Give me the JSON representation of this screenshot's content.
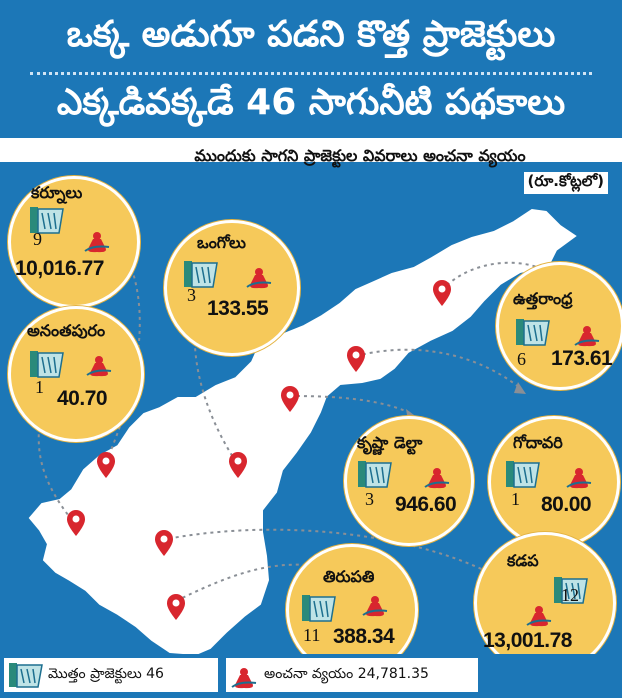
{
  "banner": {
    "line1": "ఒక్క అడుగూ పడని కొత్త ప్రాజెక్టులు",
    "line2": "ఎక్కడివక్కడే 46 సాగునీటి పథకాలు"
  },
  "subtitle": {
    "line1": "ముందుకు సాగని ప్రాజెక్టుల వివరాలు అంచనా వ్యయం",
    "line2": "(రూ.కోట్లలో)"
  },
  "regions": [
    {
      "name": "కర్నూలు",
      "projects": "9",
      "cost": "10,016.77"
    },
    {
      "name": "ఒంగోలు",
      "projects": "3",
      "cost": "133.55"
    },
    {
      "name": "అనంతపురం",
      "projects": "1",
      "cost": "40.70"
    },
    {
      "name": "ఉత్తరాంధ్ర",
      "projects": "6",
      "cost": "173.61"
    },
    {
      "name": "కృష్ణా డెల్టా",
      "projects": "3",
      "cost": "946.60"
    },
    {
      "name": "గోదావరి",
      "projects": "1",
      "cost": "80.00"
    },
    {
      "name": "తిరుపతి",
      "projects": "11",
      "cost": "388.34"
    },
    {
      "name": "కడప",
      "projects": "12",
      "cost": "13,001.78"
    }
  ],
  "footer": {
    "projects_label": "మొత్తం ప్రాజెక్టులు 46",
    "cost_label": "అంచనా వ్యయం 24,781.35"
  },
  "colors": {
    "brand_blue": "#1c77b7",
    "bubble": "#f6c95a",
    "pin": "#d8262e",
    "land": "#ffffff",
    "sea": "#1c77b7"
  },
  "icons": {
    "project": "dam-icon",
    "cost": "money-bag-icon",
    "location": "map-pin-icon"
  }
}
